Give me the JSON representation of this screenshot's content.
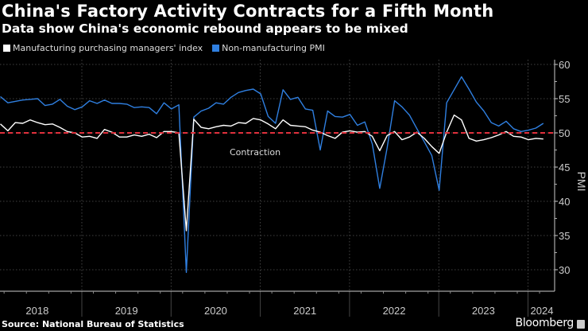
{
  "chart_data": {
    "type": "line",
    "title": "China's Factory Activity Contracts for a Fifth Month",
    "subtitle": "Data show China's economic rebound appears to be mixed",
    "ylabel": "PMI",
    "ylim": [
      26.8,
      61
    ],
    "yticks": [
      30,
      35,
      40,
      45,
      50,
      55,
      60
    ],
    "x_start": "2018-01",
    "x_end": "2024-02",
    "frequency": "monthly",
    "xtick_labels": [
      "2018",
      "2019",
      "2020",
      "2021",
      "2022",
      "2023",
      "2024"
    ],
    "grid": true,
    "legend_position": "top-left",
    "reference_line": {
      "value": 50,
      "label": "Contraction",
      "color": "#e0303c",
      "style": "dashed"
    },
    "series": [
      {
        "name": "Manufacturing purchasing managers' index",
        "color": "#ffffff",
        "values": [
          51.3,
          50.3,
          51.5,
          51.4,
          51.9,
          51.5,
          51.2,
          51.3,
          50.8,
          50.2,
          50.0,
          49.4,
          49.5,
          49.2,
          50.5,
          50.1,
          49.4,
          49.4,
          49.7,
          49.5,
          49.8,
          49.3,
          50.2,
          50.2,
          50.0,
          35.7,
          52.0,
          50.8,
          50.6,
          50.9,
          51.1,
          51.0,
          51.5,
          51.4,
          52.1,
          51.9,
          51.3,
          50.6,
          51.9,
          51.1,
          51.0,
          50.9,
          50.4,
          50.1,
          49.6,
          49.2,
          50.1,
          50.3,
          50.1,
          50.2,
          49.5,
          47.4,
          49.6,
          50.2,
          49.0,
          49.4,
          50.1,
          49.2,
          48.0,
          47.0,
          50.1,
          52.6,
          51.9,
          49.2,
          48.8,
          49.0,
          49.3,
          49.7,
          50.2,
          49.5,
          49.4,
          49.0,
          49.2,
          49.1
        ]
      },
      {
        "name": "Non-manufacturing PMI",
        "color": "#2f7fe0",
        "values": [
          55.3,
          54.4,
          54.6,
          54.8,
          54.9,
          55.0,
          54.0,
          54.2,
          54.9,
          53.9,
          53.4,
          53.8,
          54.7,
          54.3,
          54.8,
          54.3,
          54.3,
          54.2,
          53.7,
          53.8,
          53.7,
          52.8,
          54.4,
          53.5,
          54.1,
          29.6,
          52.3,
          53.2,
          53.6,
          54.4,
          54.2,
          55.2,
          55.9,
          56.2,
          56.4,
          55.7,
          52.4,
          51.4,
          56.3,
          54.9,
          55.2,
          53.5,
          53.3,
          47.5,
          53.2,
          52.4,
          52.3,
          52.7,
          51.1,
          51.6,
          48.4,
          41.9,
          47.8,
          54.7,
          53.8,
          52.6,
          50.6,
          48.7,
          46.7,
          41.6,
          54.4,
          56.3,
          58.2,
          56.4,
          54.5,
          53.2,
          51.5,
          51.0,
          51.7,
          50.6,
          50.2,
          50.4,
          50.7,
          51.4
        ]
      }
    ]
  },
  "footer": {
    "source": "Source: National Bureau of Statistics",
    "brand": "Bloomberg"
  }
}
